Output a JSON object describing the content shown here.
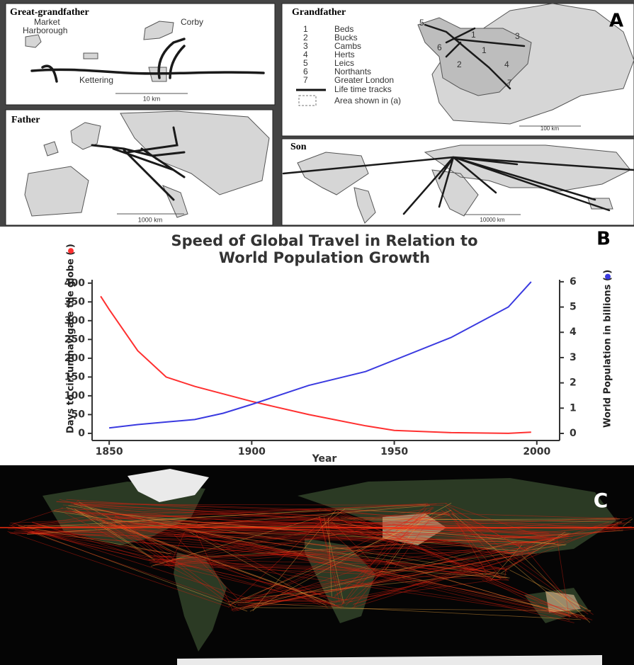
{
  "panel_a": {
    "letter": "A",
    "great_grandfather": {
      "title": "Great-grandfather",
      "labels": [
        "Market",
        "Harborough",
        "Corby",
        "Kettering"
      ],
      "scale": "10 km"
    },
    "father": {
      "title": "Father",
      "scale": "1000 km"
    },
    "grandfather": {
      "title": "Grandfather",
      "legend": [
        {
          "num": 1,
          "name": "Beds"
        },
        {
          "num": 2,
          "name": "Bucks"
        },
        {
          "num": 3,
          "name": "Cambs"
        },
        {
          "num": 4,
          "name": "Herts"
        },
        {
          "num": 5,
          "name": "Leics"
        },
        {
          "num": 6,
          "name": "Northants"
        },
        {
          "num": 7,
          "name": "Greater London"
        }
      ],
      "tracks": "Life time tracks",
      "area": "Area shown in (a)",
      "scale": "100 km"
    },
    "son": {
      "title": "Son",
      "scale": "10000 km"
    }
  },
  "chart_data": {
    "type": "line",
    "letter": "B",
    "title": [
      "Speed of Global Travel in Relation to",
      "World Population Growth"
    ],
    "xlabel": "Year",
    "ylabel": "Days to circumnavigate the globe (  )",
    "y2label": "World Population in billions (  )",
    "x": [
      1847,
      1850,
      1860,
      1870,
      1880,
      1890,
      1900,
      1920,
      1940,
      1950,
      1970,
      1990,
      1998
    ],
    "series": [
      {
        "color": "#ff3030",
        "values": [
          365,
          330,
          220,
          150,
          125,
          105,
          85,
          50,
          20,
          8,
          2,
          0,
          3
        ]
      },
      {
        "color": "#3a3ae0",
        "axis": "y2",
        "values": [
          null,
          0.22,
          0.35,
          0.45,
          0.55,
          0.8,
          1.15,
          1.9,
          2.45,
          2.9,
          3.8,
          5.0,
          6.0
        ]
      }
    ],
    "xlim": [
      1844,
      2008
    ],
    "xticks": [
      1850,
      1900,
      1950,
      2000
    ],
    "ylim": [
      -19,
      409
    ],
    "yticks": [
      0,
      50,
      100,
      150,
      200,
      250,
      300,
      350,
      400
    ],
    "y2lim": [
      -0.28,
      6.08
    ],
    "y2ticks": [
      0,
      1,
      2,
      3,
      4,
      5,
      6
    ]
  },
  "panel_c": {
    "letter": "C"
  }
}
